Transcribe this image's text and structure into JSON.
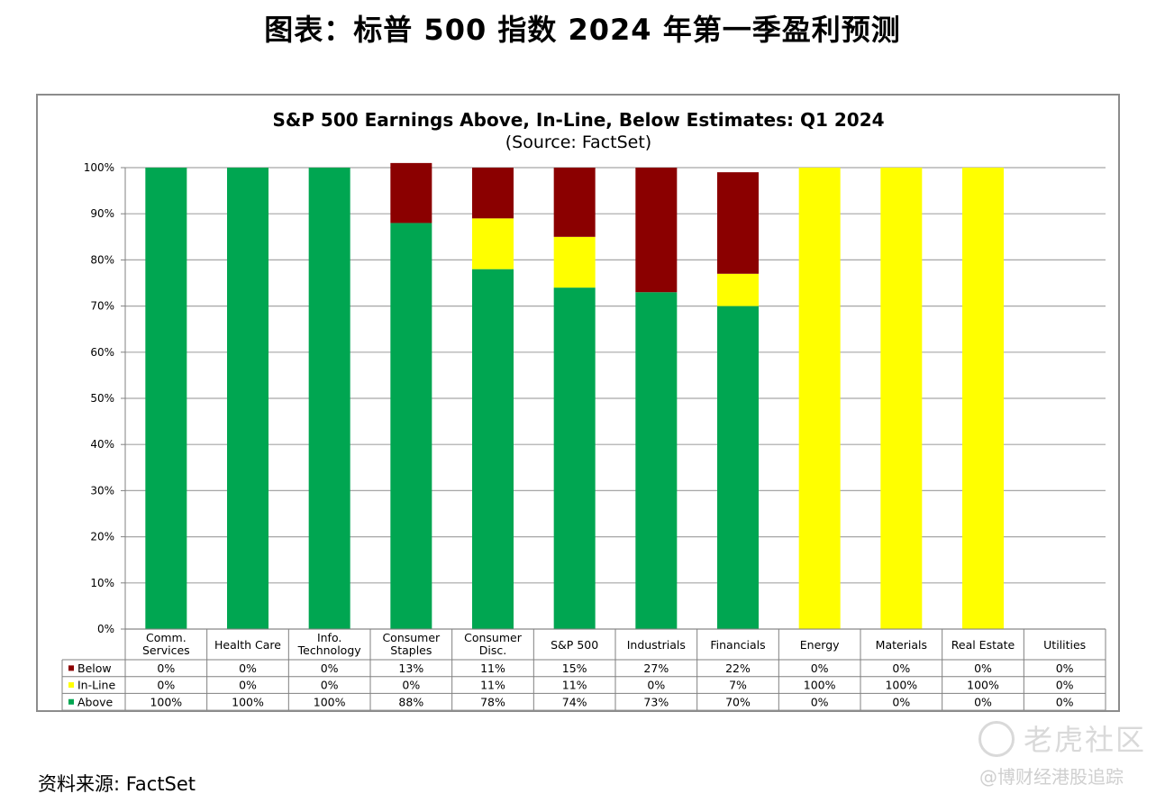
{
  "page": {
    "title": "图表：标普 500 指数 2024 年第一季盈利预测",
    "source": "资料来源: FactSet",
    "watermark_logo": "老虎社区",
    "watermark_author": "@博财经港股追踪"
  },
  "chart_data": {
    "type": "bar",
    "stacked": true,
    "title": "S&P 500 Earnings Above, In-Line, Below Estimates: Q1 2024",
    "subtitle": "(Source: FactSet)",
    "y_ticks": [
      "0%",
      "10%",
      "20%",
      "30%",
      "40%",
      "50%",
      "60%",
      "70%",
      "80%",
      "90%",
      "100%"
    ],
    "ylim": [
      0,
      100
    ],
    "grid": true,
    "legend_placement": "data table rows",
    "categories": [
      [
        "Comm.",
        "Services"
      ],
      [
        "Health Care"
      ],
      [
        "Info.",
        "Technology"
      ],
      [
        "Consumer",
        "Staples"
      ],
      [
        "Consumer",
        "Disc."
      ],
      [
        "S&P 500"
      ],
      [
        "Industrials"
      ],
      [
        "Financials"
      ],
      [
        "Energy"
      ],
      [
        "Materials"
      ],
      [
        "Real Estate"
      ],
      [
        "Utilities"
      ]
    ],
    "series": [
      {
        "name": "Below",
        "color": "#8b0000",
        "values": [
          0,
          0,
          0,
          13,
          11,
          15,
          27,
          22,
          0,
          0,
          0,
          0
        ],
        "labels": [
          "0%",
          "0%",
          "0%",
          "13%",
          "11%",
          "15%",
          "27%",
          "22%",
          "0%",
          "0%",
          "0%",
          "0%"
        ]
      },
      {
        "name": "In-Line",
        "color": "#ffff00",
        "values": [
          0,
          0,
          0,
          0,
          11,
          11,
          0,
          7,
          100,
          100,
          100,
          0
        ],
        "labels": [
          "0%",
          "0%",
          "0%",
          "0%",
          "11%",
          "11%",
          "0%",
          "7%",
          "100%",
          "100%",
          "100%",
          "0%"
        ]
      },
      {
        "name": "Above",
        "color": "#00a651",
        "values": [
          100,
          100,
          100,
          88,
          78,
          74,
          73,
          70,
          0,
          0,
          0,
          0
        ],
        "labels": [
          "100%",
          "100%",
          "100%",
          "88%",
          "78%",
          "74%",
          "73%",
          "70%",
          "0%",
          "0%",
          "0%",
          "0%"
        ]
      }
    ]
  }
}
